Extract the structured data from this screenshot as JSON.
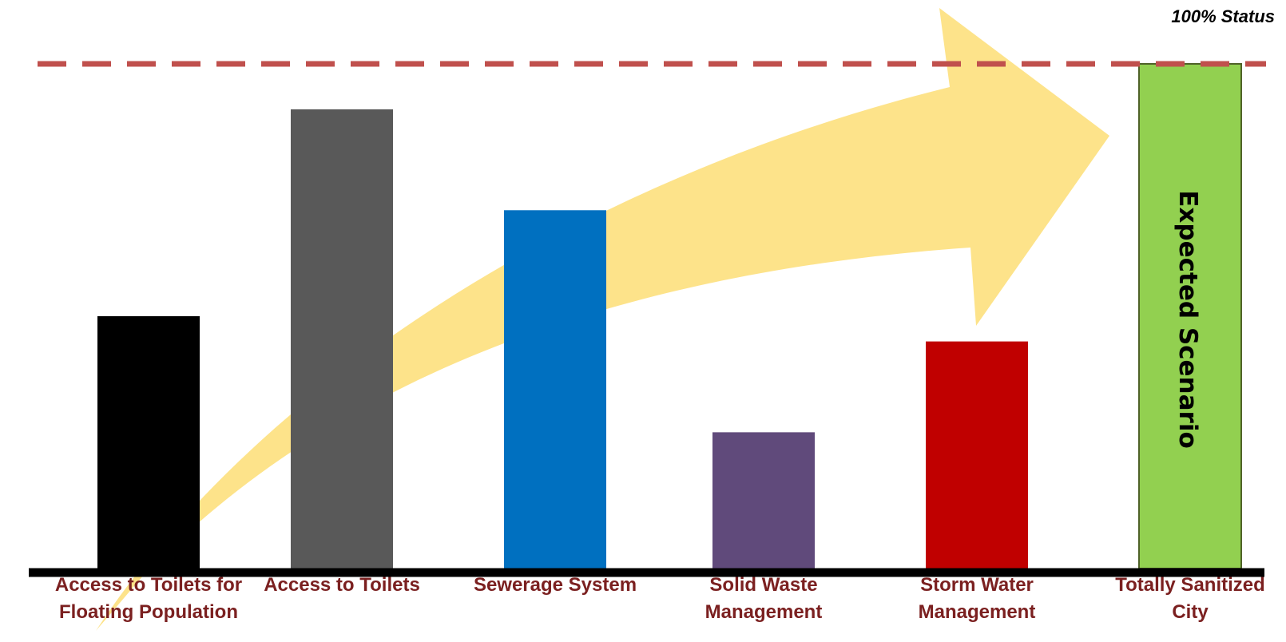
{
  "reference_line": {
    "label": "100% Status",
    "value": 100,
    "color": "#C0504D"
  },
  "annotation": {
    "text": "Expected Scenario",
    "color": "#000000"
  },
  "colors": {
    "arrow": "#FDE38A",
    "axis": "#000000",
    "label_text": "#7B2020"
  },
  "chart_data": {
    "type": "bar",
    "categories": [
      "Access to Toilets for\nFloating Population",
      "Access to Toilets",
      "Sewerage System",
      "Solid Waste\nManagement",
      "Storm Water\nManagement",
      "Totally Sanitized\nCity"
    ],
    "values": [
      50,
      91,
      71,
      27,
      45,
      100
    ],
    "colors": [
      "#000000",
      "#595959",
      "#0070C0",
      "#604A7B",
      "#C00000",
      "#92D050"
    ],
    "title": "",
    "xlabel": "",
    "ylabel": "",
    "ylim": [
      0,
      100
    ],
    "grid": false,
    "legend": "none",
    "y_axis_shown": false
  }
}
